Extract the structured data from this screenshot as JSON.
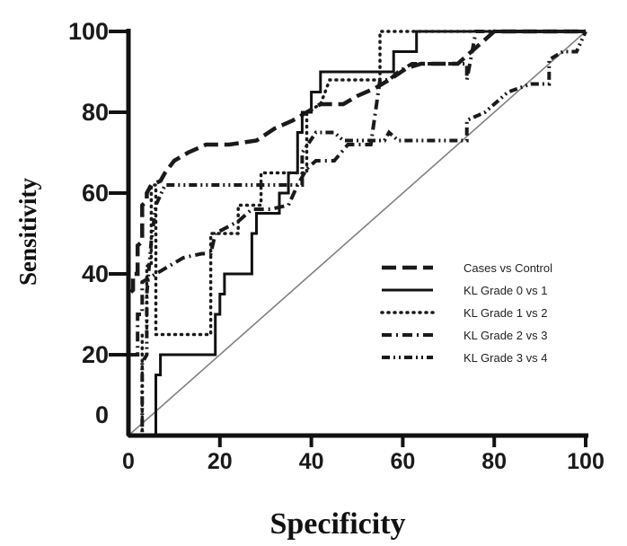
{
  "chart_data": {
    "type": "line",
    "title": "",
    "xlabel": "Specificity",
    "ylabel": "Sensitivity",
    "xlim": [
      0,
      100
    ],
    "ylim": [
      0,
      100
    ],
    "x_ticks": [
      "0",
      "20",
      "40",
      "60",
      "80",
      "100"
    ],
    "y_ticks": [
      "0",
      "20",
      "40",
      "60",
      "80",
      "100"
    ],
    "grid": false,
    "legend_position": "bottom-right",
    "reference_line": {
      "from": [
        0,
        0
      ],
      "to": [
        100,
        100
      ],
      "color": "#808080"
    },
    "series": [
      {
        "name": "Cases vs Control",
        "style": "long-dash",
        "color": "#1a1a1a",
        "points": [
          [
            0,
            0
          ],
          [
            0,
            35
          ],
          [
            1,
            36
          ],
          [
            1,
            40
          ],
          [
            2,
            40
          ],
          [
            2,
            47
          ],
          [
            3,
            48
          ],
          [
            3,
            52
          ],
          [
            3,
            57
          ],
          [
            4,
            58
          ],
          [
            4,
            60
          ],
          [
            5,
            62
          ],
          [
            7,
            63
          ],
          [
            8,
            65
          ],
          [
            10,
            68
          ],
          [
            13,
            70
          ],
          [
            17,
            72
          ],
          [
            22,
            72
          ],
          [
            28,
            73
          ],
          [
            32,
            76
          ],
          [
            36,
            78
          ],
          [
            39,
            80
          ],
          [
            42,
            82
          ],
          [
            47,
            82
          ],
          [
            50,
            84
          ],
          [
            54,
            86
          ],
          [
            57,
            88
          ],
          [
            61,
            91
          ],
          [
            64,
            92
          ],
          [
            72,
            92
          ],
          [
            80,
            100
          ],
          [
            100,
            100
          ]
        ]
      },
      {
        "name": "KL Grade 0 vs 1",
        "style": "solid",
        "color": "#111111",
        "points": [
          [
            0,
            0
          ],
          [
            6,
            0
          ],
          [
            6,
            15
          ],
          [
            7,
            15
          ],
          [
            7,
            20
          ],
          [
            19,
            20
          ],
          [
            19,
            30
          ],
          [
            20,
            30
          ],
          [
            20,
            35
          ],
          [
            21,
            35
          ],
          [
            21,
            40
          ],
          [
            27,
            40
          ],
          [
            27,
            50
          ],
          [
            28,
            50
          ],
          [
            28,
            55
          ],
          [
            33,
            55
          ],
          [
            33,
            60
          ],
          [
            35,
            60
          ],
          [
            35,
            65
          ],
          [
            37,
            65
          ],
          [
            37,
            75
          ],
          [
            38,
            75
          ],
          [
            38,
            80
          ],
          [
            40,
            80
          ],
          [
            40,
            85
          ],
          [
            42,
            85
          ],
          [
            42,
            90
          ],
          [
            58,
            90
          ],
          [
            58,
            95
          ],
          [
            63,
            95
          ],
          [
            63,
            100
          ],
          [
            100,
            100
          ]
        ]
      },
      {
        "name": "KL Grade 1 vs 2",
        "style": "dotted",
        "color": "#1a1a1a",
        "points": [
          [
            0,
            0
          ],
          [
            3,
            0
          ],
          [
            3,
            25
          ],
          [
            4,
            25
          ],
          [
            4,
            42
          ],
          [
            5,
            42
          ],
          [
            5,
            62
          ],
          [
            6,
            62
          ],
          [
            6,
            25
          ],
          [
            18,
            25
          ],
          [
            18,
            50
          ],
          [
            24,
            50
          ],
          [
            24,
            57
          ],
          [
            29,
            57
          ],
          [
            29,
            65
          ],
          [
            39,
            65
          ],
          [
            39,
            80
          ],
          [
            42,
            82
          ],
          [
            44,
            88
          ],
          [
            55,
            88
          ],
          [
            55,
            100
          ],
          [
            100,
            100
          ]
        ]
      },
      {
        "name": "KL Grade 2 vs 3",
        "style": "dash-dot",
        "color": "#1a1a1a",
        "points": [
          [
            0,
            0
          ],
          [
            0,
            20
          ],
          [
            2,
            20
          ],
          [
            2,
            30
          ],
          [
            3,
            30
          ],
          [
            3,
            38
          ],
          [
            6,
            40
          ],
          [
            9,
            42
          ],
          [
            12,
            44
          ],
          [
            16,
            45
          ],
          [
            18,
            45
          ],
          [
            19,
            50
          ],
          [
            24,
            53
          ],
          [
            27,
            56
          ],
          [
            31,
            56
          ],
          [
            35,
            57
          ],
          [
            37,
            62
          ],
          [
            39,
            66
          ],
          [
            41,
            68
          ],
          [
            45,
            68
          ],
          [
            48,
            72
          ],
          [
            53,
            72
          ],
          [
            55,
            88
          ],
          [
            57,
            88
          ],
          [
            59,
            90
          ],
          [
            62,
            92
          ],
          [
            67,
            92
          ],
          [
            74,
            92
          ],
          [
            74,
            88
          ],
          [
            76,
            100
          ],
          [
            100,
            100
          ]
        ]
      },
      {
        "name": "KL Grade 3 vs 4",
        "style": "dash-dot-dot",
        "color": "#1a1a1a",
        "points": [
          [
            0,
            0
          ],
          [
            3,
            0
          ],
          [
            3,
            18
          ],
          [
            4,
            20
          ],
          [
            4,
            35
          ],
          [
            5,
            48
          ],
          [
            6,
            57
          ],
          [
            8,
            62
          ],
          [
            12,
            62
          ],
          [
            20,
            62
          ],
          [
            30,
            62
          ],
          [
            38,
            62
          ],
          [
            38,
            70
          ],
          [
            41,
            75
          ],
          [
            45,
            75
          ],
          [
            47,
            73
          ],
          [
            52,
            73
          ],
          [
            56,
            73
          ],
          [
            57,
            75
          ],
          [
            59,
            73
          ],
          [
            64,
            73
          ],
          [
            74,
            73
          ],
          [
            74,
            78
          ],
          [
            78,
            80
          ],
          [
            83,
            85
          ],
          [
            88,
            87
          ],
          [
            92,
            87
          ],
          [
            92,
            93
          ],
          [
            95,
            95
          ],
          [
            98,
            95
          ],
          [
            100,
            100
          ]
        ]
      }
    ]
  }
}
